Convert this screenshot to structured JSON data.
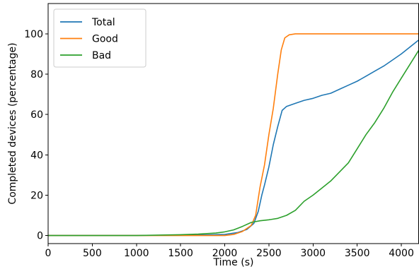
{
  "chart_data": {
    "type": "line",
    "title": "",
    "xlabel": "Time (s)",
    "ylabel": "Completed devices (percentage)",
    "xlim": [
      0,
      4200
    ],
    "ylim": [
      -4,
      115
    ],
    "xticks": [
      0,
      500,
      1000,
      1500,
      2000,
      2500,
      3000,
      3500,
      4000
    ],
    "yticks": [
      0,
      20,
      40,
      60,
      80,
      100
    ],
    "xtick_labels": [
      "0",
      "500",
      "1000",
      "1500",
      "2000",
      "2500",
      "3000",
      "3500",
      "4000"
    ],
    "ytick_labels": [
      "0",
      "20",
      "40",
      "60",
      "80",
      "100"
    ],
    "grid": false,
    "legend_position": "top-left",
    "series": [
      {
        "name": "Total",
        "color": "#1f77b4",
        "points": [
          [
            0,
            0
          ],
          [
            1000,
            0
          ],
          [
            1500,
            0.2
          ],
          [
            1800,
            0.3
          ],
          [
            2000,
            0.5
          ],
          [
            2150,
            1.5
          ],
          [
            2250,
            3
          ],
          [
            2330,
            6
          ],
          [
            2380,
            12
          ],
          [
            2420,
            20
          ],
          [
            2450,
            25
          ],
          [
            2500,
            34
          ],
          [
            2550,
            45
          ],
          [
            2600,
            54
          ],
          [
            2650,
            62
          ],
          [
            2700,
            64
          ],
          [
            2800,
            65.5
          ],
          [
            2900,
            67
          ],
          [
            3000,
            68
          ],
          [
            3100,
            69.5
          ],
          [
            3200,
            70.5
          ],
          [
            3300,
            72.5
          ],
          [
            3400,
            74.5
          ],
          [
            3500,
            76.5
          ],
          [
            3600,
            79
          ],
          [
            3700,
            81.5
          ],
          [
            3800,
            84
          ],
          [
            3900,
            87
          ],
          [
            4000,
            90
          ],
          [
            4100,
            93.5
          ],
          [
            4200,
            97
          ]
        ]
      },
      {
        "name": "Good",
        "color": "#ff7f0e",
        "points": [
          [
            0,
            0
          ],
          [
            1000,
            0
          ],
          [
            1500,
            0
          ],
          [
            1800,
            0
          ],
          [
            2000,
            0
          ],
          [
            2100,
            0.5
          ],
          [
            2200,
            2
          ],
          [
            2300,
            5
          ],
          [
            2350,
            10
          ],
          [
            2400,
            24
          ],
          [
            2450,
            35
          ],
          [
            2500,
            50
          ],
          [
            2550,
            63
          ],
          [
            2600,
            80
          ],
          [
            2640,
            92
          ],
          [
            2680,
            98
          ],
          [
            2730,
            99.5
          ],
          [
            2800,
            100
          ],
          [
            4200,
            100
          ]
        ]
      },
      {
        "name": "Bad",
        "color": "#2ca02c",
        "points": [
          [
            0,
            0
          ],
          [
            1000,
            0
          ],
          [
            1500,
            0.4
          ],
          [
            1700,
            0.7
          ],
          [
            1900,
            1.2
          ],
          [
            2000,
            1.8
          ],
          [
            2100,
            2.8
          ],
          [
            2200,
            4.5
          ],
          [
            2300,
            6.5
          ],
          [
            2400,
            7.3
          ],
          [
            2500,
            7.8
          ],
          [
            2600,
            8.5
          ],
          [
            2700,
            10
          ],
          [
            2800,
            12.5
          ],
          [
            2900,
            17
          ],
          [
            3000,
            20
          ],
          [
            3100,
            23.5
          ],
          [
            3200,
            27
          ],
          [
            3300,
            31.5
          ],
          [
            3400,
            36
          ],
          [
            3500,
            43
          ],
          [
            3600,
            50
          ],
          [
            3700,
            56
          ],
          [
            3800,
            63
          ],
          [
            3900,
            71
          ],
          [
            4000,
            78
          ],
          [
            4100,
            85
          ],
          [
            4200,
            92
          ]
        ]
      }
    ]
  }
}
